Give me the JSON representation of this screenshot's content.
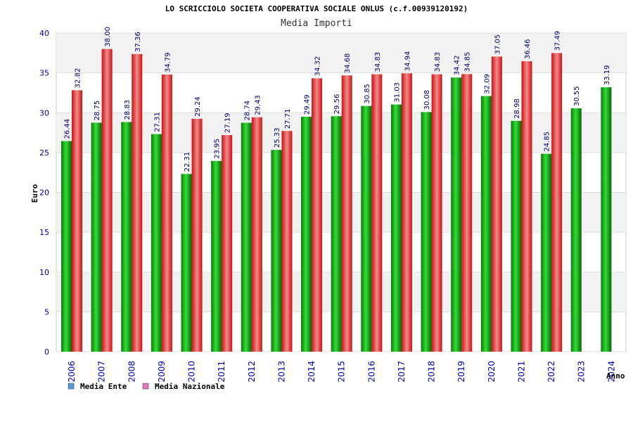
{
  "chart_data": {
    "type": "bar",
    "title": "LO SCRICCIOLO SOCIETA COOPERATIVA SOCIALE ONLUS (c.f.00939120192)",
    "subtitle": "Media Importi",
    "xlabel": "Anno",
    "ylabel": "Euro",
    "ylim": [
      0,
      40
    ],
    "yticks": [
      0,
      5,
      10,
      15,
      20,
      25,
      30,
      35,
      40
    ],
    "ytick_labels": [
      "0",
      "5",
      "10",
      "15",
      "20",
      "25",
      "30",
      "35",
      "40"
    ],
    "grid": true,
    "legend_position": "bottom-left",
    "categories": [
      "2006",
      "2007",
      "2008",
      "2009",
      "2010",
      "2011",
      "2012",
      "2013",
      "2014",
      "2015",
      "2016",
      "2017",
      "2018",
      "2019",
      "2020",
      "2021",
      "2022",
      "2023",
      "2024"
    ],
    "series": [
      {
        "name": "Media Ente",
        "legend_color": "#5b9bd5",
        "bar_color": "#00aa00",
        "values": [
          26.44,
          28.75,
          28.83,
          27.31,
          22.31,
          23.95,
          28.74,
          25.33,
          29.49,
          29.56,
          30.85,
          31.03,
          30.08,
          34.42,
          32.09,
          28.98,
          24.85,
          30.55,
          33.19
        ],
        "labels": [
          "26.44",
          "28.75",
          "28.83",
          "27.31",
          "22.31",
          "23.95",
          "28.74",
          "25.33",
          "29.49",
          "29.56",
          "30.85",
          "31.03",
          "30.08",
          "34.42",
          "32.09",
          "28.98",
          "24.85",
          "30.55",
          "33.19"
        ]
      },
      {
        "name": "Media Nazionale",
        "legend_color": "#e377c2",
        "bar_color": "#ee2222",
        "values": [
          32.82,
          38.0,
          37.36,
          34.79,
          29.24,
          27.19,
          29.43,
          27.71,
          34.32,
          34.68,
          34.83,
          34.94,
          34.83,
          34.85,
          37.05,
          36.46,
          37.49,
          null,
          null
        ],
        "labels": [
          "32.82",
          "38.00",
          "37.36",
          "34.79",
          "29.24",
          "27.19",
          "29.43",
          "27.71",
          "34.32",
          "34.68",
          "34.83",
          "34.94",
          "34.83",
          "34.85",
          "37.05",
          "36.46",
          "37.49",
          null,
          null
        ]
      }
    ]
  }
}
